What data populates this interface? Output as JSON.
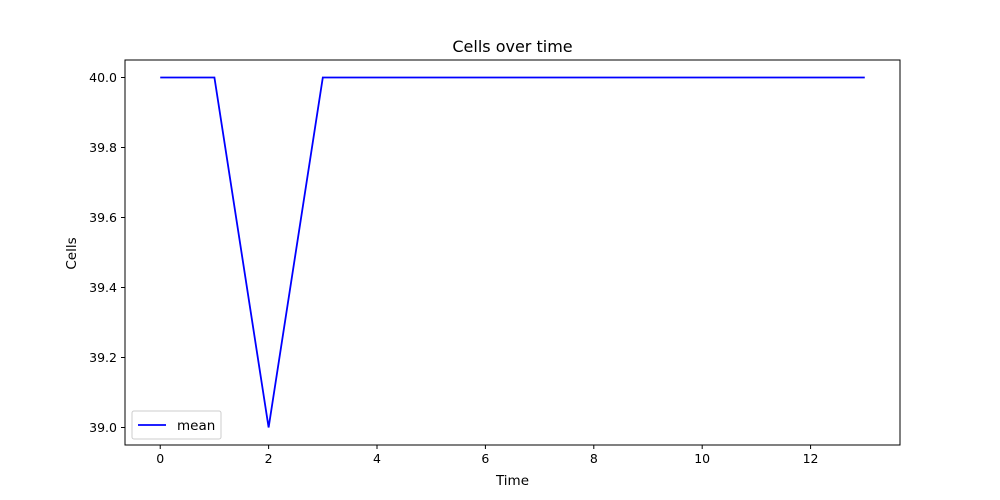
{
  "chart_data": {
    "type": "line",
    "title": "Cells over time",
    "xlabel": "Time",
    "ylabel": "Cells",
    "x": [
      0,
      1,
      2,
      3,
      4,
      5,
      6,
      7,
      8,
      9,
      10,
      11,
      12,
      13
    ],
    "series": [
      {
        "name": "mean",
        "color": "#0000ff",
        "values": [
          40.0,
          40.0,
          39.0,
          40.0,
          40.0,
          40.0,
          40.0,
          40.0,
          40.0,
          40.0,
          40.0,
          40.0,
          40.0,
          40.0
        ]
      }
    ],
    "xlim": [
      -0.65,
      13.65
    ],
    "ylim": [
      38.95,
      40.05
    ],
    "xticks": [
      0,
      2,
      4,
      6,
      8,
      10,
      12
    ],
    "xtick_labels": [
      "0",
      "2",
      "4",
      "6",
      "8",
      "10",
      "12"
    ],
    "yticks": [
      39.0,
      39.2,
      39.4,
      39.6,
      39.8,
      40.0
    ],
    "ytick_labels": [
      "39.0",
      "39.2",
      "39.4",
      "39.6",
      "39.8",
      "40.0"
    ],
    "grid": false,
    "legend_position": "lower-left"
  }
}
